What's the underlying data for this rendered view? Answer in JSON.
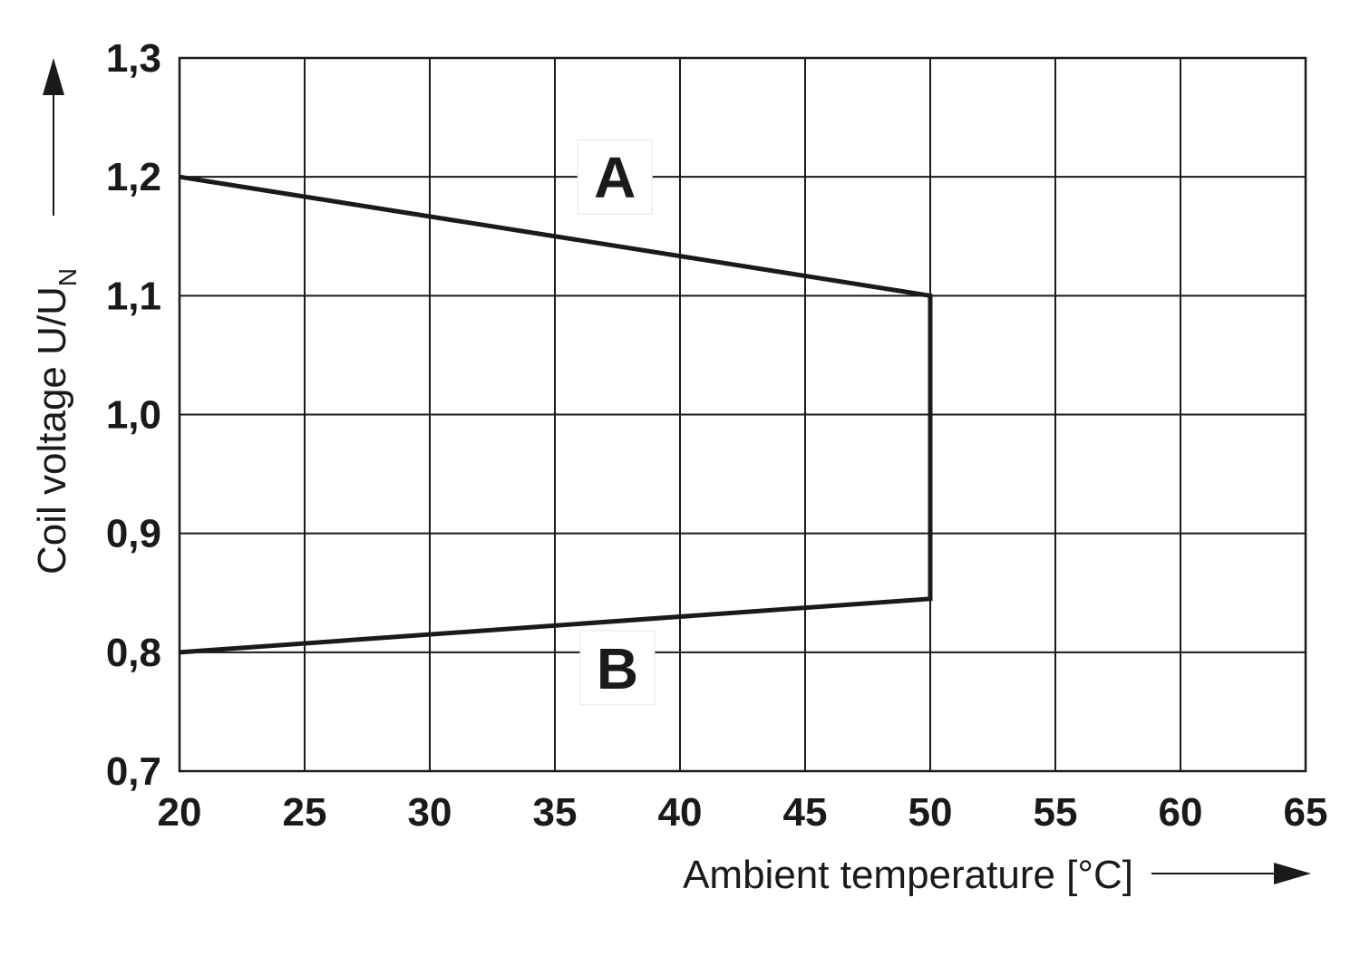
{
  "chart_data": {
    "type": "line",
    "xlabel": "Ambient temperature [°C]",
    "ylabel_main": "Coil voltage U/U",
    "ylabel_sub": "N",
    "x_ticks": [
      20,
      25,
      30,
      35,
      40,
      45,
      50,
      55,
      60,
      65
    ],
    "x_tick_labels": [
      "20",
      "25",
      "30",
      "35",
      "40",
      "45",
      "50",
      "55",
      "60",
      "65"
    ],
    "y_ticks": [
      0.7,
      0.8,
      0.9,
      1.0,
      1.1,
      1.2,
      1.3
    ],
    "y_tick_labels": [
      "0,7",
      "0,8",
      "0,9",
      "1,0",
      "1,1",
      "1,2",
      "1,3"
    ],
    "xlim": [
      20,
      65
    ],
    "ylim": [
      0.7,
      1.3
    ],
    "grid": true,
    "series": [
      {
        "x": [
          20,
          50,
          50,
          20
        ],
        "y": [
          1.2,
          1.1,
          0.845,
          0.8
        ]
      }
    ],
    "annotations": [
      {
        "text": "A",
        "x": 37.4,
        "y": 1.2
      },
      {
        "text": "B",
        "x": 37.5,
        "y": 0.787
      }
    ]
  }
}
